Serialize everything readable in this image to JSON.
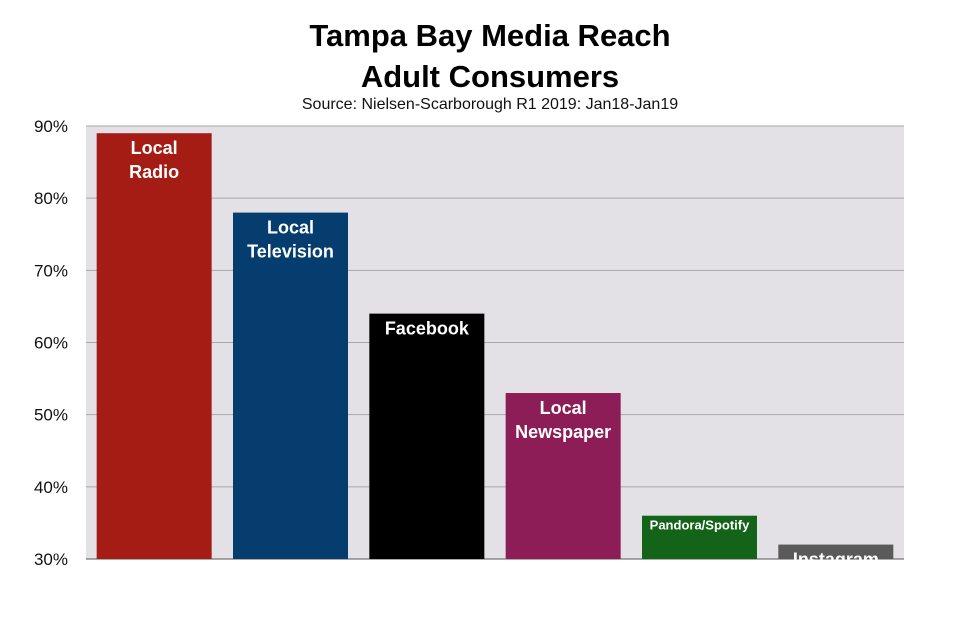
{
  "chart_data": {
    "type": "bar",
    "title_lines": [
      "Tampa Bay Media Reach",
      "Adult Consumers"
    ],
    "subtitle": "Source: Nielsen-Scarborough R1 2019: Jan18-Jan19",
    "xlabel": "",
    "ylabel": "",
    "ylim": [
      30,
      90
    ],
    "y_ticks": [
      "30%",
      "40%",
      "50%",
      "60%",
      "70%",
      "80%",
      "90%"
    ],
    "grid": true,
    "plot_background": "#e4e1e6",
    "categories": [
      {
        "label": [
          "Local",
          "Radio"
        ],
        "value": 89,
        "color": "#a51c15"
      },
      {
        "label": [
          "Local",
          "Television"
        ],
        "value": 78,
        "color": "#053e6e"
      },
      {
        "label": [
          "Facebook"
        ],
        "value": 64,
        "color": "#000000"
      },
      {
        "label": [
          "Local",
          "Newspaper"
        ],
        "value": 53,
        "color": "#8c1d56"
      },
      {
        "label": [
          "Pandora/Spotify"
        ],
        "value": 36,
        "color": "#136318"
      },
      {
        "label": [
          "Instagram"
        ],
        "value": 32,
        "color": "#5a5a5a"
      }
    ]
  }
}
